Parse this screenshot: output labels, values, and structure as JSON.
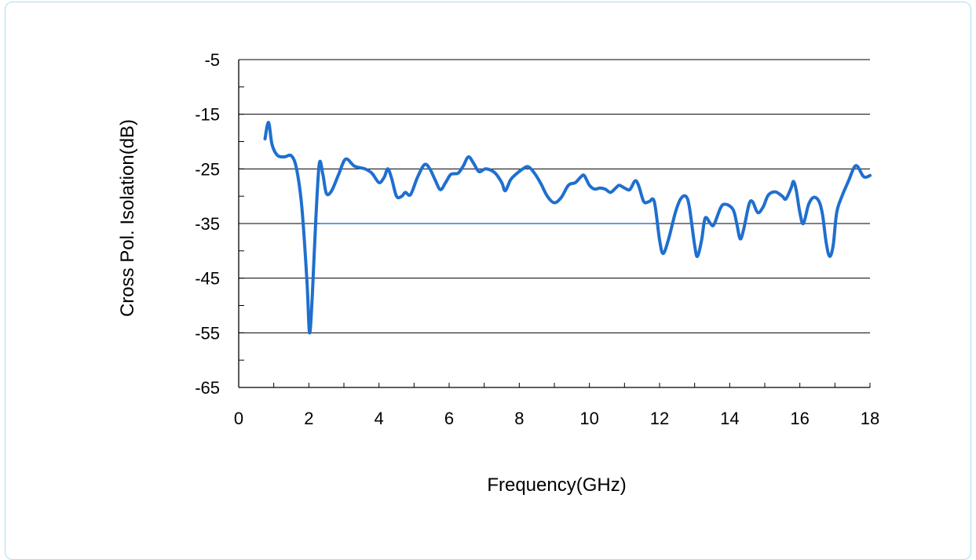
{
  "chart_data": {
    "type": "line",
    "title": "",
    "xlabel": "Frequency(GHz)",
    "ylabel": "Cross Pol. Isolation(dB)",
    "xlim": [
      0,
      18
    ],
    "ylim": [
      -65,
      -5
    ],
    "xticks": [
      0,
      2,
      4,
      6,
      8,
      10,
      12,
      14,
      16,
      18
    ],
    "yticks": [
      -5,
      -15,
      -25,
      -35,
      -45,
      -55,
      -65
    ],
    "grid": "horizontal",
    "colors": {
      "line": "#1f6fcf",
      "grid": "#000000",
      "midline": "#2f7fd0",
      "frame": "#a9dcef"
    },
    "series": [
      {
        "values": [
          [
            0.75,
            -19.5
          ],
          [
            0.85,
            -16.5
          ],
          [
            0.95,
            -20.5
          ],
          [
            1.1,
            -22.5
          ],
          [
            1.3,
            -22.8
          ],
          [
            1.5,
            -22.6
          ],
          [
            1.65,
            -25
          ],
          [
            1.8,
            -32
          ],
          [
            1.95,
            -46
          ],
          [
            2.02,
            -55
          ],
          [
            2.1,
            -48
          ],
          [
            2.2,
            -34
          ],
          [
            2.3,
            -24
          ],
          [
            2.4,
            -26
          ],
          [
            2.5,
            -29.5
          ],
          [
            2.65,
            -29
          ],
          [
            2.85,
            -26
          ],
          [
            3.05,
            -23.2
          ],
          [
            3.3,
            -24.5
          ],
          [
            3.6,
            -25
          ],
          [
            3.8,
            -25.8
          ],
          [
            4.0,
            -27.5
          ],
          [
            4.15,
            -26.5
          ],
          [
            4.25,
            -25
          ],
          [
            4.35,
            -26.5
          ],
          [
            4.5,
            -30
          ],
          [
            4.65,
            -30
          ],
          [
            4.75,
            -29.3
          ],
          [
            4.9,
            -29.7
          ],
          [
            5.1,
            -26.5
          ],
          [
            5.3,
            -24.2
          ],
          [
            5.45,
            -25
          ],
          [
            5.6,
            -27
          ],
          [
            5.75,
            -28.8
          ],
          [
            5.9,
            -27.5
          ],
          [
            6.05,
            -26
          ],
          [
            6.25,
            -25.8
          ],
          [
            6.4,
            -24.5
          ],
          [
            6.55,
            -22.8
          ],
          [
            6.7,
            -24
          ],
          [
            6.85,
            -25.5
          ],
          [
            7.05,
            -25
          ],
          [
            7.3,
            -25.7
          ],
          [
            7.5,
            -27.5
          ],
          [
            7.6,
            -29
          ],
          [
            7.75,
            -27
          ],
          [
            7.9,
            -26
          ],
          [
            8.1,
            -25
          ],
          [
            8.25,
            -24.6
          ],
          [
            8.4,
            -25.5
          ],
          [
            8.6,
            -27.5
          ],
          [
            8.8,
            -30
          ],
          [
            9.0,
            -31.2
          ],
          [
            9.2,
            -30.2
          ],
          [
            9.4,
            -28
          ],
          [
            9.6,
            -27.5
          ],
          [
            9.75,
            -26.5
          ],
          [
            9.85,
            -26.2
          ],
          [
            10.0,
            -28
          ],
          [
            10.15,
            -28.7
          ],
          [
            10.3,
            -28.5
          ],
          [
            10.45,
            -28.7
          ],
          [
            10.6,
            -29.3
          ],
          [
            10.75,
            -28.5
          ],
          [
            10.85,
            -28
          ],
          [
            11.0,
            -28.5
          ],
          [
            11.15,
            -28.8
          ],
          [
            11.3,
            -27.2
          ],
          [
            11.4,
            -28
          ],
          [
            11.55,
            -31
          ],
          [
            11.7,
            -31
          ],
          [
            11.85,
            -31
          ],
          [
            12.0,
            -38
          ],
          [
            12.1,
            -40.5
          ],
          [
            12.25,
            -38
          ],
          [
            12.45,
            -33
          ],
          [
            12.6,
            -30.5
          ],
          [
            12.75,
            -30
          ],
          [
            12.85,
            -32
          ],
          [
            13.0,
            -39
          ],
          [
            13.08,
            -41
          ],
          [
            13.2,
            -38
          ],
          [
            13.3,
            -34
          ],
          [
            13.45,
            -35
          ],
          [
            13.55,
            -35.2
          ],
          [
            13.75,
            -32
          ],
          [
            13.9,
            -31.5
          ],
          [
            14.1,
            -32.5
          ],
          [
            14.2,
            -35
          ],
          [
            14.3,
            -37.8
          ],
          [
            14.4,
            -36
          ],
          [
            14.55,
            -31.5
          ],
          [
            14.65,
            -31
          ],
          [
            14.8,
            -33
          ],
          [
            14.95,
            -32
          ],
          [
            15.1,
            -29.8
          ],
          [
            15.3,
            -29.2
          ],
          [
            15.5,
            -30
          ],
          [
            15.6,
            -30.5
          ],
          [
            15.75,
            -28.5
          ],
          [
            15.82,
            -27.3
          ],
          [
            15.9,
            -29
          ],
          [
            16.0,
            -33
          ],
          [
            16.1,
            -35
          ],
          [
            16.25,
            -31.5
          ],
          [
            16.4,
            -30.2
          ],
          [
            16.55,
            -31
          ],
          [
            16.65,
            -33.5
          ],
          [
            16.75,
            -38.5
          ],
          [
            16.85,
            -41
          ],
          [
            16.95,
            -39
          ],
          [
            17.05,
            -33
          ],
          [
            17.2,
            -30
          ],
          [
            17.4,
            -27
          ],
          [
            17.55,
            -24.7
          ],
          [
            17.65,
            -24.6
          ],
          [
            17.8,
            -26.3
          ],
          [
            17.9,
            -26.5
          ],
          [
            18.0,
            -26.2
          ]
        ]
      }
    ]
  }
}
